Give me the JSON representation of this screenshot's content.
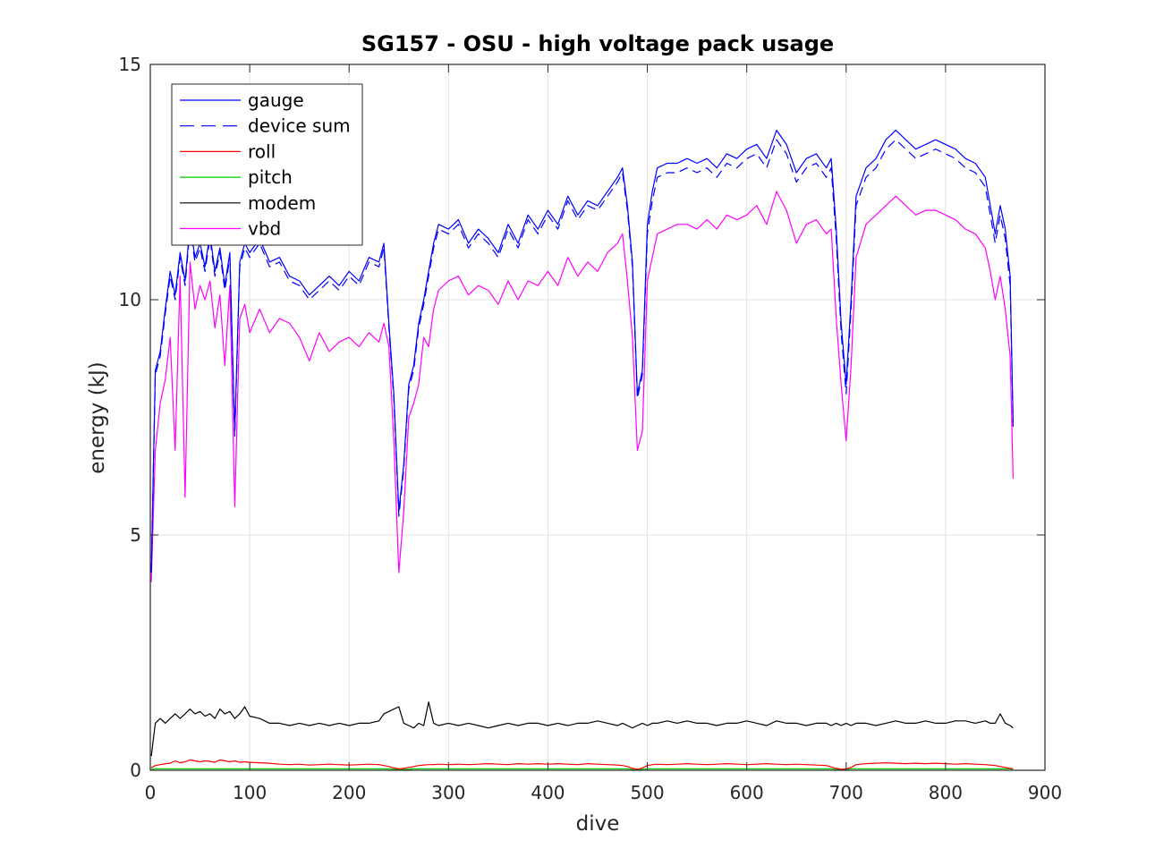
{
  "chart_data": {
    "type": "line",
    "title": "SG157 - OSU - high voltage pack usage",
    "xlabel": "dive",
    "ylabel": "energy (kJ)",
    "xlim": [
      0,
      900
    ],
    "ylim": [
      0,
      15
    ],
    "xticks": [
      0,
      100,
      200,
      300,
      400,
      500,
      600,
      700,
      800,
      900
    ],
    "yticks": [
      0,
      5,
      10,
      15
    ],
    "xtick_labels": [
      "0",
      "100",
      "200",
      "300",
      "400",
      "500",
      "600",
      "700",
      "800",
      "900"
    ],
    "ytick_labels": [
      "0",
      "5",
      "10",
      "15"
    ],
    "grid": true,
    "legend_position": "top-left",
    "x": [
      1,
      5,
      10,
      15,
      20,
      25,
      30,
      35,
      40,
      45,
      50,
      55,
      60,
      65,
      70,
      75,
      80,
      85,
      90,
      95,
      100,
      110,
      120,
      130,
      140,
      150,
      160,
      170,
      180,
      190,
      200,
      210,
      220,
      230,
      235,
      240,
      245,
      250,
      255,
      260,
      265,
      270,
      275,
      280,
      285,
      290,
      300,
      310,
      320,
      330,
      340,
      350,
      360,
      370,
      380,
      390,
      400,
      410,
      420,
      430,
      440,
      450,
      460,
      470,
      475,
      480,
      485,
      490,
      495,
      500,
      505,
      510,
      520,
      530,
      540,
      550,
      560,
      570,
      580,
      590,
      600,
      610,
      620,
      630,
      640,
      650,
      660,
      670,
      680,
      685,
      690,
      695,
      700,
      705,
      710,
      720,
      730,
      740,
      750,
      760,
      770,
      780,
      790,
      800,
      810,
      820,
      830,
      840,
      845,
      850,
      855,
      860,
      865,
      868
    ],
    "series": [
      {
        "name": "gauge",
        "color": "#0000ff",
        "dash": "solid",
        "values": [
          4.2,
          8.5,
          8.9,
          9.8,
          10.6,
          10.1,
          11.0,
          10.4,
          11.6,
          10.9,
          11.2,
          10.7,
          11.4,
          10.6,
          11.1,
          10.3,
          11.0,
          7.2,
          10.8,
          11.2,
          11.0,
          11.3,
          10.8,
          10.9,
          10.5,
          10.4,
          10.1,
          10.3,
          10.5,
          10.3,
          10.6,
          10.4,
          10.9,
          10.8,
          11.2,
          9.5,
          8.0,
          5.5,
          6.5,
          8.2,
          8.6,
          9.5,
          10.0,
          10.6,
          11.2,
          11.6,
          11.5,
          11.7,
          11.2,
          11.5,
          11.3,
          11.0,
          11.6,
          11.2,
          11.8,
          11.5,
          11.9,
          11.6,
          12.2,
          11.8,
          12.1,
          12.0,
          12.3,
          12.6,
          12.8,
          12.0,
          10.8,
          8.0,
          8.5,
          11.6,
          12.3,
          12.8,
          12.9,
          12.9,
          13.0,
          12.9,
          13.0,
          12.8,
          13.1,
          13.0,
          13.2,
          13.3,
          13.0,
          13.6,
          13.3,
          12.7,
          13.0,
          13.1,
          12.8,
          13.0,
          11.5,
          9.5,
          8.2,
          10.0,
          12.2,
          12.8,
          13.0,
          13.4,
          13.6,
          13.4,
          13.2,
          13.3,
          13.4,
          13.3,
          13.2,
          13.0,
          12.9,
          12.6,
          12.0,
          11.4,
          12.0,
          11.5,
          10.5,
          7.4
        ]
      },
      {
        "name": "device sum",
        "color": "#0000ff",
        "dash": "dashed",
        "values": [
          4.2,
          8.4,
          8.8,
          9.7,
          10.5,
          10.0,
          10.9,
          10.3,
          11.5,
          10.8,
          11.1,
          10.6,
          11.3,
          10.5,
          11.0,
          10.2,
          10.9,
          7.1,
          10.7,
          11.1,
          10.9,
          11.2,
          10.7,
          10.8,
          10.4,
          10.3,
          10.0,
          10.2,
          10.4,
          10.2,
          10.5,
          10.3,
          10.8,
          10.7,
          11.1,
          9.4,
          7.9,
          5.4,
          6.4,
          8.1,
          8.5,
          9.4,
          9.9,
          10.5,
          11.1,
          11.5,
          11.4,
          11.6,
          11.1,
          11.4,
          11.2,
          10.9,
          11.5,
          11.1,
          11.7,
          11.4,
          11.8,
          11.5,
          12.1,
          11.7,
          12.0,
          11.9,
          12.2,
          12.5,
          12.7,
          11.9,
          10.7,
          7.9,
          8.4,
          11.4,
          12.1,
          12.6,
          12.7,
          12.7,
          12.8,
          12.7,
          12.8,
          12.6,
          12.9,
          12.8,
          13.0,
          13.1,
          12.8,
          13.4,
          13.1,
          12.5,
          12.8,
          12.9,
          12.6,
          12.8,
          11.3,
          9.3,
          8.0,
          9.8,
          12.0,
          12.6,
          12.8,
          13.2,
          13.4,
          13.2,
          13.0,
          13.1,
          13.2,
          13.1,
          13.0,
          12.8,
          12.7,
          12.4,
          11.8,
          11.2,
          11.8,
          11.3,
          10.3,
          7.3
        ]
      },
      {
        "name": "roll",
        "color": "#ff0000",
        "dash": "solid",
        "values": [
          0.05,
          0.1,
          0.12,
          0.14,
          0.15,
          0.2,
          0.16,
          0.18,
          0.22,
          0.2,
          0.18,
          0.2,
          0.19,
          0.17,
          0.22,
          0.2,
          0.18,
          0.2,
          0.17,
          0.18,
          0.17,
          0.16,
          0.15,
          0.13,
          0.12,
          0.13,
          0.11,
          0.12,
          0.13,
          0.12,
          0.11,
          0.12,
          0.13,
          0.12,
          0.1,
          0.08,
          0.05,
          0.03,
          0.04,
          0.06,
          0.08,
          0.1,
          0.11,
          0.12,
          0.12,
          0.13,
          0.12,
          0.13,
          0.12,
          0.13,
          0.14,
          0.13,
          0.12,
          0.14,
          0.13,
          0.14,
          0.13,
          0.14,
          0.13,
          0.12,
          0.14,
          0.13,
          0.12,
          0.11,
          0.1,
          0.08,
          0.04,
          0.02,
          0.05,
          0.1,
          0.12,
          0.13,
          0.12,
          0.13,
          0.14,
          0.13,
          0.12,
          0.13,
          0.14,
          0.13,
          0.12,
          0.13,
          0.14,
          0.13,
          0.12,
          0.13,
          0.12,
          0.11,
          0.1,
          0.07,
          0.04,
          0.02,
          0.03,
          0.06,
          0.12,
          0.14,
          0.15,
          0.16,
          0.15,
          0.14,
          0.15,
          0.14,
          0.15,
          0.14,
          0.13,
          0.14,
          0.13,
          0.12,
          0.11,
          0.1,
          0.08,
          0.06,
          0.04,
          0.03
        ]
      },
      {
        "name": "pitch",
        "color": "#00cc00",
        "dash": "solid",
        "values": [
          0.02,
          0.03,
          0.03,
          0.03,
          0.03,
          0.03,
          0.03,
          0.03,
          0.03,
          0.03,
          0.03,
          0.03,
          0.03,
          0.03,
          0.03,
          0.03,
          0.03,
          0.03,
          0.03,
          0.03,
          0.03,
          0.03,
          0.03,
          0.03,
          0.03,
          0.03,
          0.03,
          0.03,
          0.03,
          0.03,
          0.03,
          0.03,
          0.03,
          0.03,
          0.03,
          0.03,
          0.02,
          0.02,
          0.02,
          0.02,
          0.03,
          0.03,
          0.03,
          0.03,
          0.03,
          0.03,
          0.03,
          0.03,
          0.03,
          0.03,
          0.03,
          0.03,
          0.03,
          0.03,
          0.03,
          0.03,
          0.03,
          0.03,
          0.03,
          0.03,
          0.03,
          0.03,
          0.03,
          0.03,
          0.03,
          0.03,
          0.02,
          0.02,
          0.02,
          0.03,
          0.03,
          0.03,
          0.03,
          0.03,
          0.03,
          0.03,
          0.03,
          0.03,
          0.03,
          0.03,
          0.03,
          0.03,
          0.03,
          0.03,
          0.03,
          0.03,
          0.03,
          0.03,
          0.03,
          0.03,
          0.02,
          0.02,
          0.02,
          0.03,
          0.03,
          0.03,
          0.03,
          0.03,
          0.03,
          0.03,
          0.03,
          0.03,
          0.03,
          0.03,
          0.03,
          0.03,
          0.03,
          0.03,
          0.03,
          0.03,
          0.03,
          0.03,
          0.03,
          0.02
        ]
      },
      {
        "name": "modem",
        "color": "#000000",
        "dash": "solid",
        "values": [
          0.3,
          1.0,
          1.1,
          1.0,
          1.1,
          1.2,
          1.1,
          1.2,
          1.3,
          1.2,
          1.25,
          1.15,
          1.2,
          1.1,
          1.3,
          1.2,
          1.25,
          1.1,
          1.2,
          1.35,
          1.15,
          1.1,
          1.0,
          1.0,
          0.95,
          1.0,
          0.95,
          1.0,
          0.95,
          1.0,
          0.95,
          1.0,
          1.0,
          1.05,
          1.2,
          1.25,
          1.3,
          1.35,
          1.0,
          0.95,
          0.9,
          1.0,
          0.95,
          1.45,
          1.0,
          0.95,
          1.0,
          0.95,
          1.0,
          0.95,
          0.9,
          0.95,
          1.0,
          0.95,
          1.0,
          1.0,
          0.95,
          1.0,
          0.95,
          1.0,
          1.0,
          1.05,
          1.0,
          0.95,
          1.0,
          0.95,
          0.9,
          0.95,
          1.0,
          0.95,
          1.0,
          1.0,
          1.05,
          1.0,
          1.05,
          1.0,
          1.0,
          0.95,
          1.0,
          1.0,
          1.05,
          1.0,
          0.95,
          1.05,
          1.0,
          1.0,
          0.95,
          1.0,
          1.0,
          0.95,
          1.0,
          0.95,
          1.0,
          0.95,
          1.0,
          1.0,
          0.95,
          1.0,
          1.05,
          1.0,
          1.0,
          1.05,
          1.0,
          1.0,
          1.05,
          1.05,
          1.0,
          1.05,
          1.0,
          1.0,
          1.2,
          1.0,
          0.95,
          0.9
        ]
      },
      {
        "name": "vbd",
        "color": "#ff00ff",
        "dash": "solid",
        "values": [
          4.0,
          6.8,
          7.8,
          8.3,
          9.2,
          6.8,
          10.5,
          5.8,
          10.8,
          9.8,
          10.3,
          10.0,
          10.4,
          9.4,
          10.1,
          8.6,
          10.3,
          5.6,
          9.6,
          9.9,
          9.3,
          9.8,
          9.3,
          9.6,
          9.5,
          9.2,
          8.7,
          9.3,
          8.9,
          9.1,
          9.2,
          9.0,
          9.3,
          9.1,
          9.5,
          9.0,
          7.0,
          4.2,
          5.5,
          7.5,
          7.8,
          8.2,
          9.2,
          9.0,
          9.8,
          10.2,
          10.4,
          10.5,
          10.1,
          10.3,
          10.2,
          9.9,
          10.4,
          10.0,
          10.4,
          10.3,
          10.6,
          10.3,
          10.9,
          10.5,
          10.8,
          10.6,
          11.0,
          11.2,
          11.4,
          10.4,
          9.2,
          6.8,
          7.2,
          10.4,
          10.9,
          11.4,
          11.5,
          11.6,
          11.6,
          11.5,
          11.7,
          11.5,
          11.8,
          11.7,
          11.8,
          12.0,
          11.6,
          12.3,
          11.9,
          11.2,
          11.6,
          11.7,
          11.4,
          11.5,
          9.6,
          8.2,
          7.0,
          8.6,
          10.9,
          11.6,
          11.8,
          12.0,
          12.2,
          12.0,
          11.8,
          11.9,
          11.9,
          11.8,
          11.7,
          11.5,
          11.4,
          11.1,
          10.6,
          10.0,
          10.5,
          9.8,
          8.8,
          6.2
        ]
      }
    ]
  }
}
